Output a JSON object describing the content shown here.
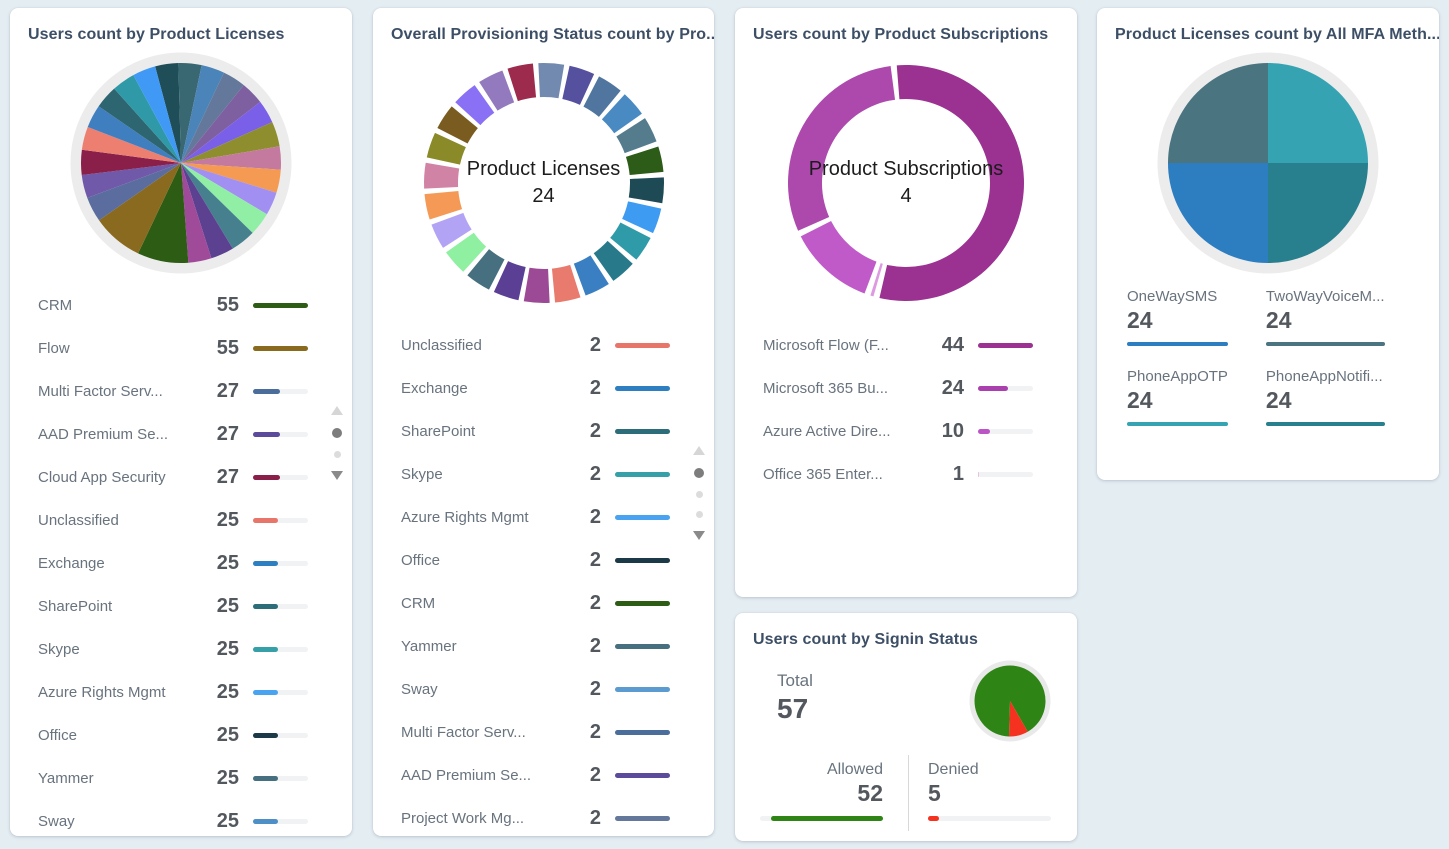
{
  "page": {
    "background": "#e4edf2",
    "card_background": "#ffffff",
    "title_color": "#3d4f66"
  },
  "chart_data": [
    {
      "id": "users-by-product-licenses",
      "type": "pie",
      "title": "Users count by Product Licenses",
      "legend_position": "bottom-list-scrollable",
      "bar_max": 55,
      "items": [
        {
          "label": "CRM",
          "value": 55,
          "color": "#2d5c14"
        },
        {
          "label": "Flow",
          "value": 55,
          "color": "#8a6a1f"
        },
        {
          "label": "Multi Factor Serv...",
          "value": 27,
          "color": "#4a6d9b"
        },
        {
          "label": "AAD Premium Se...",
          "value": 27,
          "color": "#5c4a9b"
        },
        {
          "label": "Cloud App Security",
          "value": 27,
          "color": "#8a1f4a"
        },
        {
          "label": "Unclassified",
          "value": 25,
          "color": "#e8756a"
        },
        {
          "label": "Exchange",
          "value": 25,
          "color": "#2d7fc1"
        },
        {
          "label": "SharePoint",
          "value": 25,
          "color": "#2d6d7a"
        },
        {
          "label": "Skype",
          "value": 25,
          "color": "#35a0a8"
        },
        {
          "label": "Azure Rights Mgmt",
          "value": 25,
          "color": "#4aa3f0"
        },
        {
          "label": "Office",
          "value": 25,
          "color": "#1c3947"
        },
        {
          "label": "Yammer",
          "value": 25,
          "color": "#46707f"
        },
        {
          "label": "Sway",
          "value": 25,
          "color": "#4e8fc7"
        }
      ],
      "pie_slices": [
        {
          "value": 25,
          "color": "#1f4e58"
        },
        {
          "value": 25,
          "color": "#3a6872"
        },
        {
          "value": 25,
          "color": "#4a84b8"
        },
        {
          "value": 25,
          "color": "#64789b"
        },
        {
          "value": 25,
          "color": "#7e5fa0"
        },
        {
          "value": 25,
          "color": "#7a5fe8"
        },
        {
          "value": 27,
          "color": "#8e8e2e"
        },
        {
          "value": 25,
          "color": "#c47a9e"
        },
        {
          "value": 25,
          "color": "#f49a52"
        },
        {
          "value": 25,
          "color": "#a18ff2"
        },
        {
          "value": 25,
          "color": "#90eea5"
        },
        {
          "value": 27,
          "color": "#46808f"
        },
        {
          "value": 25,
          "color": "#5b4190"
        },
        {
          "value": 25,
          "color": "#a04a9a"
        },
        {
          "value": 55,
          "color": "#2d5c14"
        },
        {
          "value": 55,
          "color": "#8a6a1f"
        },
        {
          "value": 27,
          "color": "#5a6d9e"
        },
        {
          "value": 25,
          "color": "#7059a8"
        },
        {
          "value": 27,
          "color": "#8a1f4a"
        },
        {
          "value": 25,
          "color": "#ed7f70"
        },
        {
          "value": 25,
          "color": "#3f7fc0"
        },
        {
          "value": 25,
          "color": "#2d6570"
        },
        {
          "value": 25,
          "color": "#2f99a8"
        },
        {
          "value": 25,
          "color": "#3f99f5"
        }
      ]
    },
    {
      "id": "provisioning-status-by-product",
      "type": "donut",
      "title": "Overall Provisioning Status count by Pro...",
      "center_label": "Product Licenses",
      "center_value": "24",
      "bar_max": 2,
      "segments_equal": true,
      "segment_colors": [
        "#7289b0",
        "#55519e",
        "#50759e",
        "#4a8ac2",
        "#547c8c",
        "#2c5c17",
        "#1e4a55",
        "#3e9bf2",
        "#2f9ba8",
        "#287a8a",
        "#3a7fc1",
        "#e87b6e",
        "#9c4a96",
        "#5b3f94",
        "#46707f",
        "#8ef0a0",
        "#b3a3f5",
        "#f59a56",
        "#d183a5",
        "#8a8a28",
        "#7a5c20",
        "#8a70f5",
        "#9379bd",
        "#9c2b4d"
      ],
      "items": [
        {
          "label": "Unclassified",
          "value": 2,
          "color": "#e8756a"
        },
        {
          "label": "Exchange",
          "value": 2,
          "color": "#2d7fc1"
        },
        {
          "label": "SharePoint",
          "value": 2,
          "color": "#2d6d7a"
        },
        {
          "label": "Skype",
          "value": 2,
          "color": "#35a0a8"
        },
        {
          "label": "Azure Rights Mgmt",
          "value": 2,
          "color": "#4aa3f0"
        },
        {
          "label": "Office",
          "value": 2,
          "color": "#1c3947"
        },
        {
          "label": "CRM",
          "value": 2,
          "color": "#2d5c14"
        },
        {
          "label": "Yammer",
          "value": 2,
          "color": "#46707f"
        },
        {
          "label": "Sway",
          "value": 2,
          "color": "#5b9bd0"
        },
        {
          "label": "Multi Factor Serv...",
          "value": 2,
          "color": "#4a6d9b"
        },
        {
          "label": "AAD Premium Se...",
          "value": 2,
          "color": "#5c4a9b"
        },
        {
          "label": "Project Work Mg...",
          "value": 2,
          "color": "#64789b"
        }
      ]
    },
    {
      "id": "users-by-product-subscriptions",
      "type": "donut",
      "title": "Users count by Product Subscriptions",
      "center_label": "Product Subscriptions",
      "center_value": "4",
      "bar_max": 44,
      "items": [
        {
          "label": "Microsoft Flow (F...",
          "value": 44,
          "color": "#9b3191"
        },
        {
          "label": "Microsoft 365 Bu...",
          "value": 24,
          "color": "#aa3fae"
        },
        {
          "label": "Azure Active Dire...",
          "value": 10,
          "color": "#bb54c6"
        },
        {
          "label": "Office 365 Enter...",
          "value": 1,
          "color": "#e7c0ea"
        }
      ],
      "donut_order": [
        {
          "value": 44,
          "color": "#9b3191"
        },
        {
          "value": 1,
          "color": "#dd9ae2"
        },
        {
          "value": 10,
          "color": "#c05ac9"
        },
        {
          "value": 24,
          "color": "#ad49ad"
        }
      ]
    },
    {
      "id": "product-licenses-by-mfa-method",
      "type": "pie",
      "title": "Product Licenses count by All MFA Meth...",
      "items": [
        {
          "label": "OneWaySMS",
          "value": 24,
          "color": "#2d7dc1"
        },
        {
          "label": "TwoWayVoiceM...",
          "value": 24,
          "color": "#4a7480"
        },
        {
          "label": "PhoneAppOTP",
          "value": 24,
          "color": "#35a3b2"
        },
        {
          "label": "PhoneAppNotifi...",
          "value": 24,
          "color": "#28808f"
        }
      ],
      "pie_order": [
        {
          "value": 24,
          "color": "#35a3b2"
        },
        {
          "value": 24,
          "color": "#28808f"
        },
        {
          "value": 24,
          "color": "#2d7dc1"
        },
        {
          "value": 24,
          "color": "#4a7480"
        }
      ]
    },
    {
      "id": "users-by-signin-status",
      "type": "pie",
      "title": "Users count by Signin Status",
      "total_label": "Total",
      "total_value": "57",
      "items": [
        {
          "label": "Allowed",
          "value": 52,
          "color": "#2e8415"
        },
        {
          "label": "Denied",
          "value": 5,
          "color": "#f5311f"
        }
      ],
      "gauge_red_start_deg": 150
    }
  ]
}
